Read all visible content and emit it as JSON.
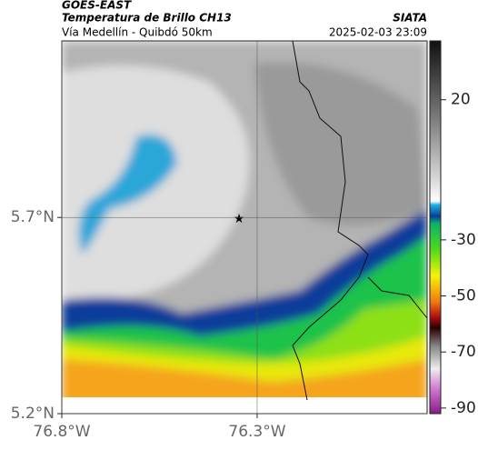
{
  "header": {
    "title": "GOES-EAST",
    "subtitle": "Temperatura de Brillo CH13",
    "source": "SIATA",
    "region": "Vía Medellín - Quibdó 50km",
    "timestamp": "2025-02-03 23:09"
  },
  "map": {
    "latlim": [
      5.2,
      6.15
    ],
    "lonlim": [
      -76.8,
      -75.865
    ],
    "lat_ticks": [
      {
        "value": 5.7,
        "label": "5.7°N"
      },
      {
        "value": 5.2,
        "label": "5.2°N"
      }
    ],
    "lon_ticks": [
      {
        "value": -76.8,
        "label": "76.8°W"
      },
      {
        "value": -76.3,
        "label": "76.3°W"
      }
    ]
  },
  "colorbar": {
    "range": [
      -92,
      41
    ],
    "ticks": [
      20,
      -30,
      -50,
      -70,
      -90
    ]
  }
}
